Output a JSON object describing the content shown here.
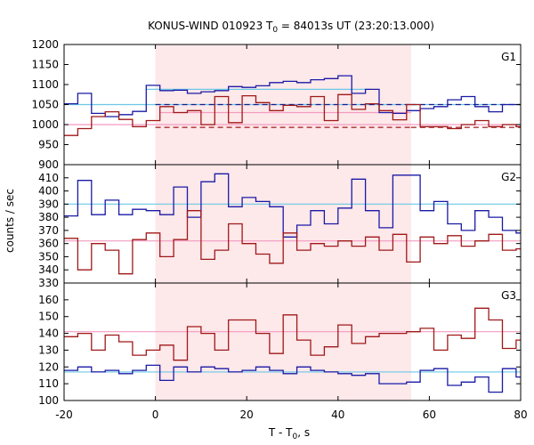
{
  "figure": {
    "title_main": "KONUS-WIND 010923 T",
    "title_sub": "0",
    "title_rest": " = 84013s UT (23:20:13.000)",
    "ylabel": "counts / sec",
    "xlabel_main": "T - T",
    "xlabel_sub": "0",
    "xlabel_rest": ", s"
  },
  "chart_data": {
    "type": "line",
    "x_range": [
      -20,
      80
    ],
    "x_ticks": [
      -20,
      0,
      20,
      40,
      60,
      80
    ],
    "x_tick_labels": [
      "-20",
      "0",
      "20",
      "40",
      "60",
      "80"
    ],
    "highlight_interval": [
      0,
      56
    ],
    "bin_edges": [
      -20,
      -17,
      -14,
      -11,
      -8,
      -5,
      -2,
      1,
      4,
      7,
      10,
      13,
      16,
      19,
      22,
      25,
      28,
      31,
      34,
      37,
      40,
      43,
      46,
      49,
      52,
      55,
      58,
      61,
      64,
      67,
      70,
      73,
      76,
      79,
      80
    ],
    "colors": {
      "blue_series": "#1a1aa6",
      "red_series": "#a01818",
      "cyan_level": "#6cc8e6",
      "pink_level": "#f29bc0",
      "blue_dashed": "#1a1a8c",
      "red_dashed": "#a01818",
      "highlight": "#fde8ea"
    },
    "panels": [
      {
        "label": "G1",
        "ylim": [
          900,
          1200
        ],
        "yticks": [
          900,
          950,
          1000,
          1050,
          1100,
          1150,
          1200
        ],
        "ytick_labels": [
          "900",
          "950",
          "1000",
          "1050",
          "1100",
          "1150",
          "1200"
        ],
        "series": [
          {
            "color": "blue_series",
            "values": [
              1052,
              1078,
              1028,
              1020,
              1025,
              1033,
              1098,
              1085,
              1086,
              1078,
              1082,
              1085,
              1095,
              1093,
              1097,
              1105,
              1108,
              1105,
              1112,
              1115,
              1122,
              1078,
              1088,
              1030,
              1028,
              1035,
              1040,
              1045,
              1062,
              1070,
              1045,
              1032,
              1050,
              1050
            ]
          },
          {
            "color": "red_series",
            "values": [
              973,
              990,
              1020,
              1032,
              1013,
              995,
              1010,
              1045,
              1030,
              1035,
              1000,
              1070,
              1005,
              1072,
              1055,
              1035,
              1048,
              1045,
              1070,
              1010,
              1075,
              1038,
              1052,
              1035,
              1012,
              1050,
              995,
              995,
              990,
              1000,
              1010,
              995,
              1000,
              995
            ]
          }
        ],
        "levels": [
          {
            "color": "cyan_level",
            "from": -20,
            "to": 80,
            "y": 1050,
            "dashed": false
          },
          {
            "color": "cyan_level",
            "from": -2,
            "to": 47,
            "y": 1088,
            "dashed": false
          },
          {
            "color": "pink_level",
            "from": -20,
            "to": 80,
            "y": 1000,
            "dashed": false
          },
          {
            "color": "pink_level",
            "from": 1,
            "to": 56,
            "y": 1030,
            "dashed": false
          },
          {
            "color": "blue_dashed",
            "from": 0,
            "to": 56,
            "y": 1050,
            "dashed": true
          },
          {
            "color": "blue_dashed",
            "from": 56,
            "to": 80,
            "y": 1050,
            "dashed": true
          },
          {
            "color": "red_dashed",
            "from": 0,
            "to": 56,
            "y": 993,
            "dashed": true
          },
          {
            "color": "red_dashed",
            "from": 56,
            "to": 80,
            "y": 993,
            "dashed": true
          }
        ]
      },
      {
        "label": "G2",
        "ylim": [
          330,
          420
        ],
        "yticks": [
          330,
          340,
          350,
          360,
          370,
          380,
          390,
          400,
          410
        ],
        "ytick_labels": [
          "330",
          "340",
          "350",
          "360",
          "370",
          "380",
          "390",
          "400",
          "410"
        ],
        "series": [
          {
            "color": "blue_series",
            "values": [
              381,
              408,
              382,
              393,
              382,
              386,
              385,
              382,
              403,
              380,
              407,
              413,
              388,
              395,
              392,
              388,
              365,
              374,
              385,
              375,
              387,
              409,
              385,
              372,
              412,
              412,
              385,
              392,
              375,
              370,
              385,
              380,
              370,
              368
            ]
          },
          {
            "color": "red_series",
            "values": [
              364,
              340,
              360,
              355,
              337,
              363,
              368,
              350,
              363,
              385,
              348,
              355,
              375,
              360,
              352,
              345,
              368,
              355,
              360,
              358,
              362,
              358,
              365,
              355,
              367,
              346,
              365,
              360,
              366,
              358,
              362,
              367,
              355,
              356
            ]
          }
        ],
        "levels": [
          {
            "color": "cyan_level",
            "from": -20,
            "to": 80,
            "y": 390,
            "dashed": false
          },
          {
            "color": "pink_level",
            "from": -20,
            "to": 80,
            "y": 362,
            "dashed": false
          }
        ]
      },
      {
        "label": "G3",
        "ylim": [
          100,
          170
        ],
        "yticks": [
          100,
          110,
          120,
          130,
          140,
          150,
          160
        ],
        "ytick_labels": [
          "100",
          "110",
          "120",
          "130",
          "140",
          "150",
          "160"
        ],
        "series": [
          {
            "color": "blue_series",
            "values": [
              118,
              120,
              117,
              118,
              116,
              118,
              121,
              112,
              120,
              117,
              120,
              119,
              117,
              118,
              120,
              118,
              116,
              120,
              118,
              117,
              116,
              115,
              116,
              110,
              110,
              111,
              118,
              119,
              109,
              111,
              114,
              105,
              119,
              114
            ]
          },
          {
            "color": "red_series",
            "values": [
              138,
              140,
              130,
              139,
              135,
              127,
              130,
              133,
              124,
              144,
              140,
              130,
              148,
              148,
              140,
              128,
              151,
              136,
              127,
              132,
              145,
              134,
              138,
              140,
              140,
              141,
              143,
              130,
              139,
              137,
              155,
              148,
              131,
              136
            ]
          }
        ],
        "levels": [
          {
            "color": "cyan_level",
            "from": -20,
            "to": 80,
            "y": 117,
            "dashed": false
          },
          {
            "color": "pink_level",
            "from": -20,
            "to": 80,
            "y": 141,
            "dashed": false
          }
        ]
      }
    ]
  }
}
